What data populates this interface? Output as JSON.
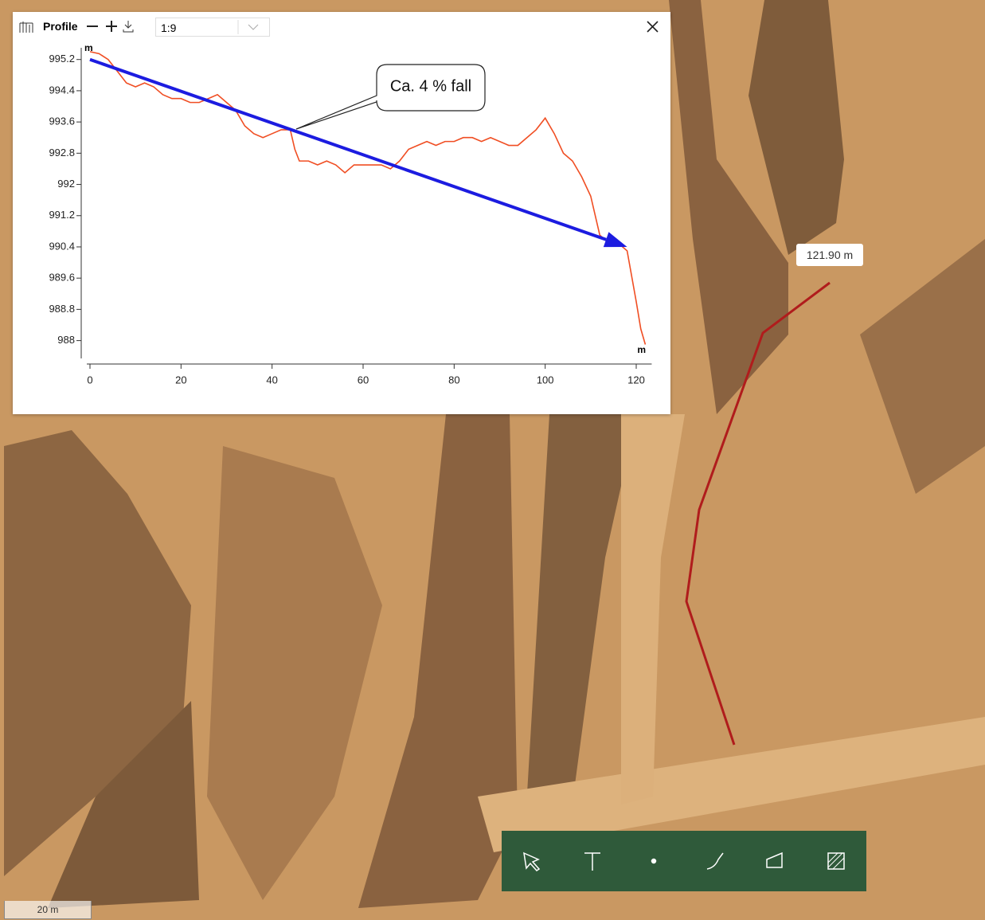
{
  "panel": {
    "title": "Profile",
    "scale": "1:9"
  },
  "map": {
    "tooltip": "121.90 m",
    "scale_bar": "20 m"
  },
  "chart_data": {
    "type": "line",
    "y_label": "m",
    "x_label": "m",
    "annotation": "Ca. 4 % fall",
    "arrow": {
      "x": [
        0,
        118
      ],
      "y": [
        995.2,
        990.4
      ],
      "color": "#1c1ce0"
    },
    "x": [
      0,
      2,
      4,
      6,
      8,
      10,
      12,
      14,
      16,
      18,
      20,
      22,
      24,
      26,
      28,
      30,
      32,
      34,
      36,
      38,
      40,
      42,
      44,
      45,
      46,
      48,
      50,
      52,
      54,
      56,
      58,
      60,
      62,
      64,
      66,
      68,
      70,
      72,
      74,
      76,
      78,
      80,
      82,
      84,
      86,
      88,
      90,
      92,
      94,
      96,
      98,
      100,
      102,
      104,
      106,
      108,
      110,
      112,
      114,
      116,
      118,
      120,
      121,
      122
    ],
    "series": [
      {
        "color": "#f04e23",
        "values": [
          995.4,
          995.35,
          995.2,
          994.9,
          994.6,
          994.5,
          994.6,
          994.5,
          994.3,
          994.2,
          994.2,
          994.1,
          994.1,
          994.2,
          994.3,
          994.1,
          993.9,
          993.5,
          993.3,
          993.2,
          993.3,
          993.4,
          993.4,
          992.9,
          992.6,
          992.6,
          992.5,
          992.6,
          992.5,
          992.3,
          992.5,
          992.5,
          992.5,
          992.5,
          992.4,
          992.6,
          992.9,
          993.0,
          993.1,
          993.0,
          993.1,
          993.1,
          993.2,
          993.2,
          993.1,
          993.2,
          993.1,
          993.0,
          993.0,
          993.2,
          993.4,
          993.7,
          993.3,
          992.8,
          992.6,
          992.2,
          991.7,
          990.7,
          990.5,
          990.5,
          990.3,
          989.0,
          988.3,
          987.9
        ]
      }
    ],
    "xlim": [
      0,
      122
    ],
    "ylim": [
      987.4,
      995.5
    ],
    "xticks": [
      0,
      20,
      40,
      60,
      80,
      100,
      120
    ],
    "yticks": [
      995.2,
      994.4,
      993.6,
      992.8,
      992,
      991.2,
      990.4,
      989.6,
      988.8,
      988
    ]
  }
}
